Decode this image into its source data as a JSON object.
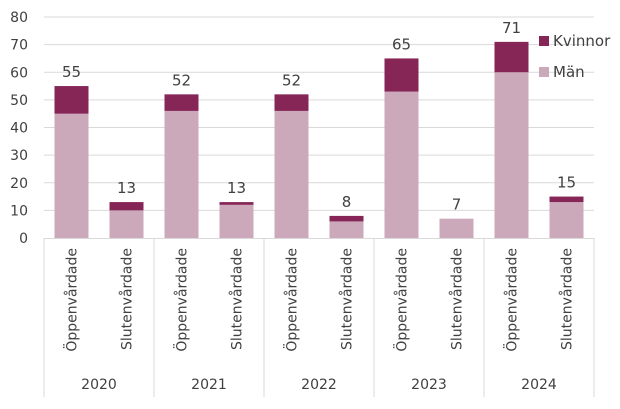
{
  "chart_data": {
    "type": "bar",
    "stacked": true,
    "groups": [
      "2020",
      "2021",
      "2022",
      "2023",
      "2024"
    ],
    "subcategories": [
      "Öppenvårdade",
      "Slutenvårdade"
    ],
    "series": [
      {
        "name": "Män",
        "color": "#cca9ba",
        "values": [
          45,
          10,
          46,
          12,
          46,
          6,
          53,
          7,
          60,
          13
        ]
      },
      {
        "name": "Kvinnor",
        "color": "#862657",
        "values": [
          10,
          3,
          6,
          1,
          6,
          2,
          12,
          0,
          11,
          2
        ]
      }
    ],
    "totals": [
      "55",
      "13",
      "52",
      "13",
      "52",
      "8",
      "65",
      "7",
      "71",
      "15"
    ],
    "ylim": [
      0,
      80
    ],
    "yticks": [
      "0",
      "10",
      "20",
      "30",
      "40",
      "50",
      "60",
      "70",
      "80"
    ],
    "grid": true,
    "legend_position": "top-right",
    "legend": [
      "Kvinnor",
      "Män"
    ]
  }
}
